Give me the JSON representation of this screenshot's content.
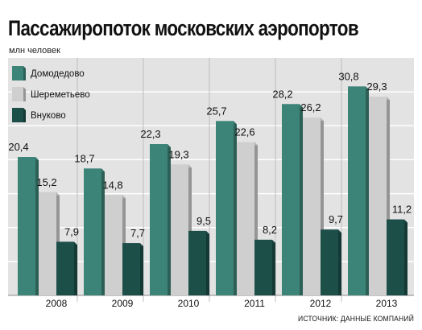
{
  "title": "Пассажиропоток московских аэропортов",
  "subtitle": "млн человек",
  "source": "ИСТОЧНИК: ДАННЫЕ КОМПАНИЙ",
  "colors": {
    "domodedovo": "#3d8478",
    "sheremetyevo": "#cfcfcf",
    "vnukovo": "#1d4f49",
    "background": "#e3e3e3",
    "grid": "#ffffff"
  },
  "chart_data": {
    "type": "bar",
    "title": "Пассажиропоток московских аэропортов",
    "ylabel": "млн человек",
    "xlabel": "",
    "ylim": [
      0,
      35
    ],
    "grid": true,
    "legend": "top-left",
    "categories": [
      "2008",
      "2009",
      "2010",
      "2011",
      "2012",
      "2013"
    ],
    "series": [
      {
        "name": "Домодедово",
        "values": [
          20.4,
          18.7,
          22.3,
          25.7,
          28.2,
          30.8
        ],
        "labels": [
          "20,4",
          "18,7",
          "22,3",
          "25,7",
          "28,2",
          "30,8"
        ]
      },
      {
        "name": "Шереметьево",
        "values": [
          15.2,
          14.8,
          19.3,
          22.6,
          26.2,
          29.3
        ],
        "labels": [
          "15,2",
          "14,8",
          "19,3",
          "22,6",
          "26,2",
          "29,3"
        ]
      },
      {
        "name": "Внуково",
        "values": [
          7.9,
          7.7,
          9.5,
          8.2,
          9.7,
          11.2
        ],
        "labels": [
          "7,9",
          "7,7",
          "9,5",
          "8,2",
          "9,7",
          "11,2"
        ]
      }
    ]
  }
}
